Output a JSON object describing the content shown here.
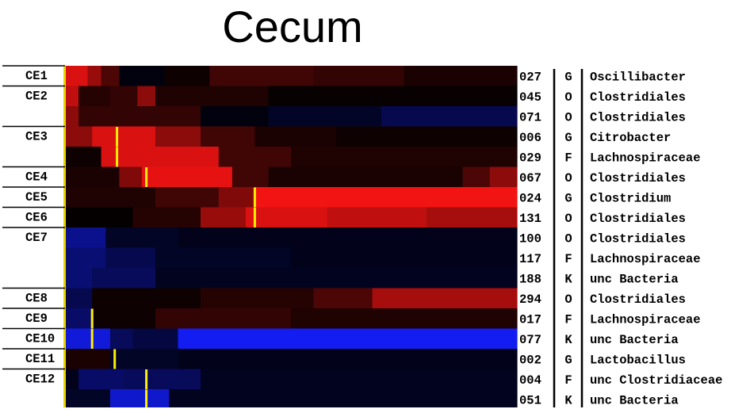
{
  "chart_data": {
    "type": "heatmap",
    "title": "Cecum",
    "colors": {
      "positive": "#ff1a1a",
      "negative": "#1a2bff",
      "zero": "#000000",
      "marker": "#ffee00"
    },
    "clusters": [
      {
        "label": "CE1",
        "rows": [
          0,
          0
        ]
      },
      {
        "label": "CE2",
        "rows": [
          1,
          2
        ]
      },
      {
        "label": "CE3",
        "rows": [
          3,
          4
        ]
      },
      {
        "label": "CE4",
        "rows": [
          5,
          5
        ]
      },
      {
        "label": "CE5",
        "rows": [
          6,
          6
        ]
      },
      {
        "label": "CE6",
        "rows": [
          7,
          7
        ]
      },
      {
        "label": "CE7",
        "rows": [
          8,
          10
        ]
      },
      {
        "label": "CE8",
        "rows": [
          11,
          11
        ]
      },
      {
        "label": "CE9",
        "rows": [
          12,
          12
        ]
      },
      {
        "label": "CE10",
        "rows": [
          13,
          13
        ]
      },
      {
        "label": "CE11",
        "rows": [
          14,
          14
        ]
      },
      {
        "label": "CE12",
        "rows": [
          15,
          16
        ]
      }
    ],
    "rows": [
      {
        "id": "027",
        "rank": "G",
        "taxon": "Oscillibacter",
        "marker": 0.0,
        "segments": [
          [
            0,
            0.05,
            0.85
          ],
          [
            0.05,
            0.08,
            0.6
          ],
          [
            0.08,
            0.12,
            0.3
          ],
          [
            0.12,
            0.22,
            -0.05
          ],
          [
            0.22,
            0.32,
            0.05
          ],
          [
            0.32,
            0.55,
            0.25
          ],
          [
            0.55,
            0.75,
            0.2
          ],
          [
            0.75,
            1,
            0.1
          ]
        ]
      },
      {
        "id": "045",
        "rank": "O",
        "taxon": "Clostridiales",
        "marker": 0.0,
        "segments": [
          [
            0,
            0.03,
            0.75
          ],
          [
            0.03,
            0.1,
            0.15
          ],
          [
            0.1,
            0.16,
            0.2
          ],
          [
            0.16,
            0.2,
            0.55
          ],
          [
            0.2,
            0.45,
            0.12
          ],
          [
            0.45,
            1,
            0.03
          ]
        ]
      },
      {
        "id": "071",
        "rank": "O",
        "taxon": "Clostridiales",
        "marker": 0.0,
        "segments": [
          [
            0,
            0.03,
            0.55
          ],
          [
            0.03,
            0.3,
            0.2
          ],
          [
            0.3,
            0.45,
            -0.05
          ],
          [
            0.45,
            0.7,
            -0.15
          ],
          [
            0.7,
            1,
            -0.3
          ]
        ]
      },
      {
        "id": "006",
        "rank": "G",
        "taxon": "Citrobacter",
        "marker": 0.115,
        "segments": [
          [
            0,
            0.06,
            0.55
          ],
          [
            0.06,
            0.2,
            0.85
          ],
          [
            0.2,
            0.3,
            0.55
          ],
          [
            0.3,
            0.42,
            0.25
          ],
          [
            0.42,
            0.6,
            0.1
          ],
          [
            0.6,
            1,
            0.05
          ]
        ]
      },
      {
        "id": "029",
        "rank": "F",
        "taxon": "Lachnospiraceae",
        "marker": 0.115,
        "segments": [
          [
            0,
            0.08,
            0.05
          ],
          [
            0.08,
            0.34,
            0.85
          ],
          [
            0.34,
            0.5,
            0.25
          ],
          [
            0.5,
            1,
            0.12
          ]
        ]
      },
      {
        "id": "067",
        "rank": "O",
        "taxon": "Clostridiales",
        "marker": 0.18,
        "segments": [
          [
            0,
            0.12,
            0.1
          ],
          [
            0.12,
            0.17,
            0.5
          ],
          [
            0.17,
            0.37,
            0.9
          ],
          [
            0.37,
            0.45,
            0.25
          ],
          [
            0.45,
            0.88,
            0.1
          ],
          [
            0.88,
            0.94,
            0.3
          ],
          [
            0.94,
            1,
            0.55
          ]
        ]
      },
      {
        "id": "024",
        "rank": "G",
        "taxon": "Clostridium",
        "marker": 0.42,
        "segments": [
          [
            0,
            0.2,
            0.12
          ],
          [
            0.2,
            0.34,
            0.25
          ],
          [
            0.34,
            0.42,
            0.5
          ],
          [
            0.42,
            1,
            0.95
          ]
        ]
      },
      {
        "id": "131",
        "rank": "O",
        "taxon": "Clostridiales",
        "marker": 0.42,
        "segments": [
          [
            0,
            0.15,
            0.02
          ],
          [
            0.15,
            0.3,
            0.15
          ],
          [
            0.3,
            0.4,
            0.6
          ],
          [
            0.4,
            0.58,
            0.85
          ],
          [
            0.58,
            0.8,
            0.75
          ],
          [
            0.8,
            1,
            0.65
          ]
        ]
      },
      {
        "id": "100",
        "rank": "O",
        "taxon": "Clostridiales",
        "marker": 0.0,
        "segments": [
          [
            0,
            0.09,
            -0.55
          ],
          [
            0.09,
            0.25,
            -0.15
          ],
          [
            0.25,
            1,
            -0.1
          ]
        ]
      },
      {
        "id": "117",
        "rank": "F",
        "taxon": "Lachnospiraceae",
        "marker": 0.0,
        "segments": [
          [
            0,
            0.09,
            -0.45
          ],
          [
            0.09,
            0.2,
            -0.3
          ],
          [
            0.2,
            0.5,
            -0.15
          ],
          [
            0.5,
            1,
            -0.1
          ]
        ]
      },
      {
        "id": "188",
        "rank": "K",
        "taxon": "unc Bacteria",
        "marker": 0.0,
        "segments": [
          [
            0,
            0.06,
            -0.45
          ],
          [
            0.06,
            0.2,
            -0.35
          ],
          [
            0.2,
            1,
            -0.12
          ]
        ]
      },
      {
        "id": "294",
        "rank": "O",
        "taxon": "Clostridiales",
        "marker": 0.0,
        "segments": [
          [
            0,
            0.06,
            -0.3
          ],
          [
            0.06,
            0.3,
            0.05
          ],
          [
            0.3,
            0.55,
            0.15
          ],
          [
            0.55,
            0.68,
            0.3
          ],
          [
            0.68,
            1,
            0.65
          ]
        ]
      },
      {
        "id": "017",
        "rank": "F",
        "taxon": "Lachnospiraceae",
        "marker": 0.06,
        "segments": [
          [
            0,
            0.06,
            -0.4
          ],
          [
            0.06,
            0.2,
            0.05
          ],
          [
            0.2,
            0.5,
            0.2
          ],
          [
            0.5,
            1,
            0.12
          ]
        ]
      },
      {
        "id": "077",
        "rank": "K",
        "taxon": "unc Bacteria",
        "marker": 0.06,
        "segments": [
          [
            0,
            0.1,
            -0.85
          ],
          [
            0.1,
            0.15,
            -0.35
          ],
          [
            0.15,
            0.25,
            -0.25
          ],
          [
            0.25,
            1,
            -0.95
          ]
        ]
      },
      {
        "id": "002",
        "rank": "G",
        "taxon": "Lactobacillus",
        "marker": 0.11,
        "segments": [
          [
            0,
            0.1,
            0.1
          ],
          [
            0.1,
            0.25,
            -0.15
          ],
          [
            0.25,
            1,
            -0.1
          ]
        ]
      },
      {
        "id": "004",
        "rank": "F",
        "taxon": "unc Clostridiaceae",
        "marker": 0.18,
        "segments": [
          [
            0,
            0.03,
            -0.1
          ],
          [
            0.03,
            0.13,
            -0.4
          ],
          [
            0.13,
            0.3,
            -0.35
          ],
          [
            0.3,
            1,
            -0.12
          ]
        ]
      },
      {
        "id": "051",
        "rank": "K",
        "taxon": "unc Bacteria",
        "marker": 0.18,
        "segments": [
          [
            0,
            0.1,
            -0.15
          ],
          [
            0.1,
            0.23,
            -0.8
          ],
          [
            0.23,
            1,
            -0.12
          ]
        ]
      }
    ]
  }
}
